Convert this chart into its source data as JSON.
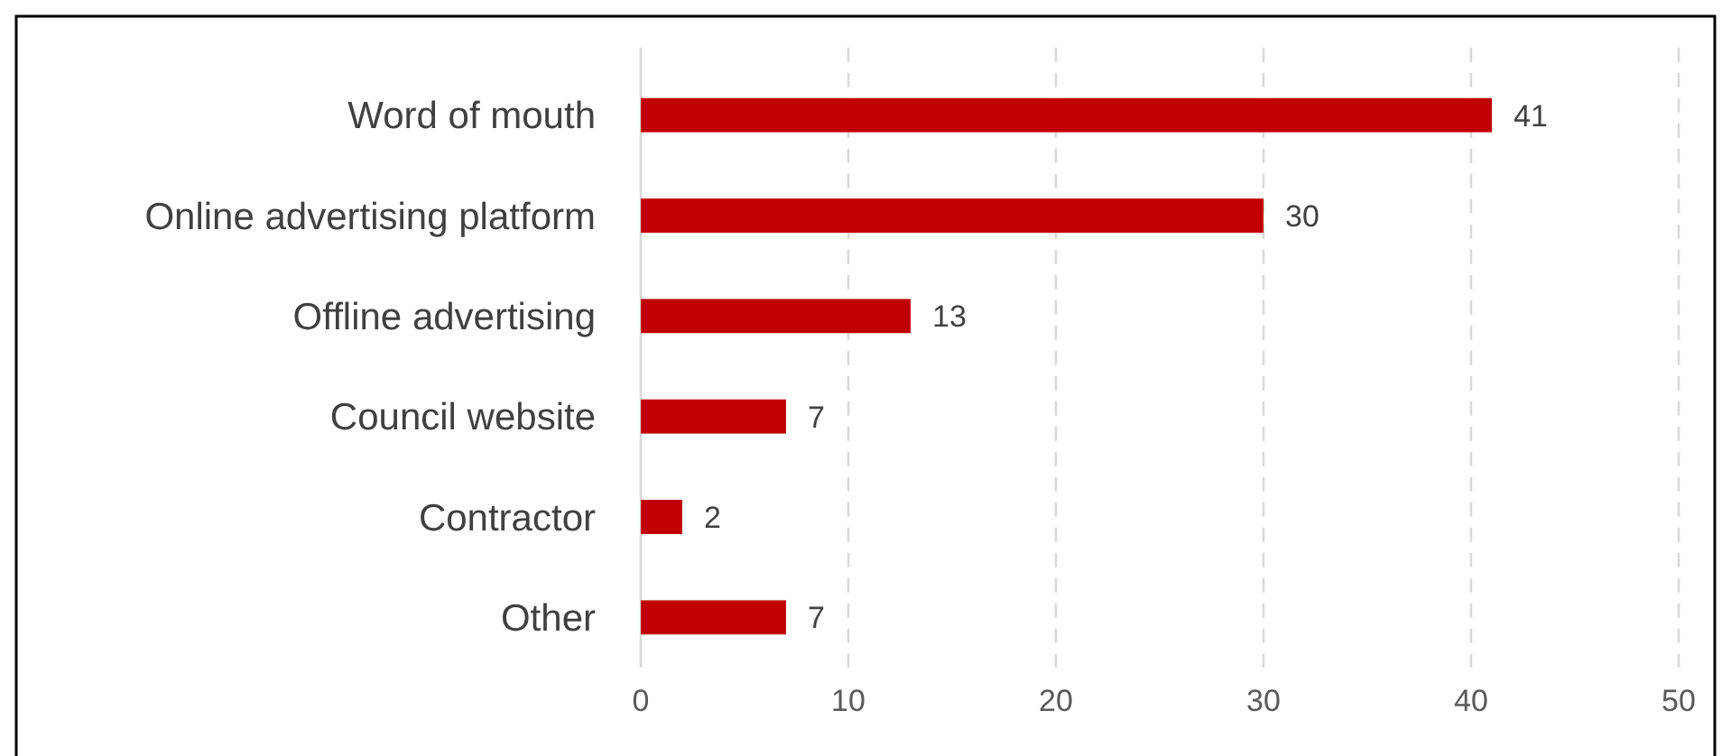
{
  "chart_data": {
    "type": "bar",
    "orientation": "horizontal",
    "categories": [
      "Word of mouth",
      "Online advertising platform",
      "Offline advertising",
      "Council website",
      "Contractor",
      "Other"
    ],
    "values": [
      41,
      30,
      13,
      7,
      2,
      7
    ],
    "color": "#c00000",
    "xlim": [
      0,
      50
    ],
    "xticks": [
      0,
      10,
      20,
      30,
      40,
      50
    ],
    "grid": "x",
    "data_labels": true
  }
}
